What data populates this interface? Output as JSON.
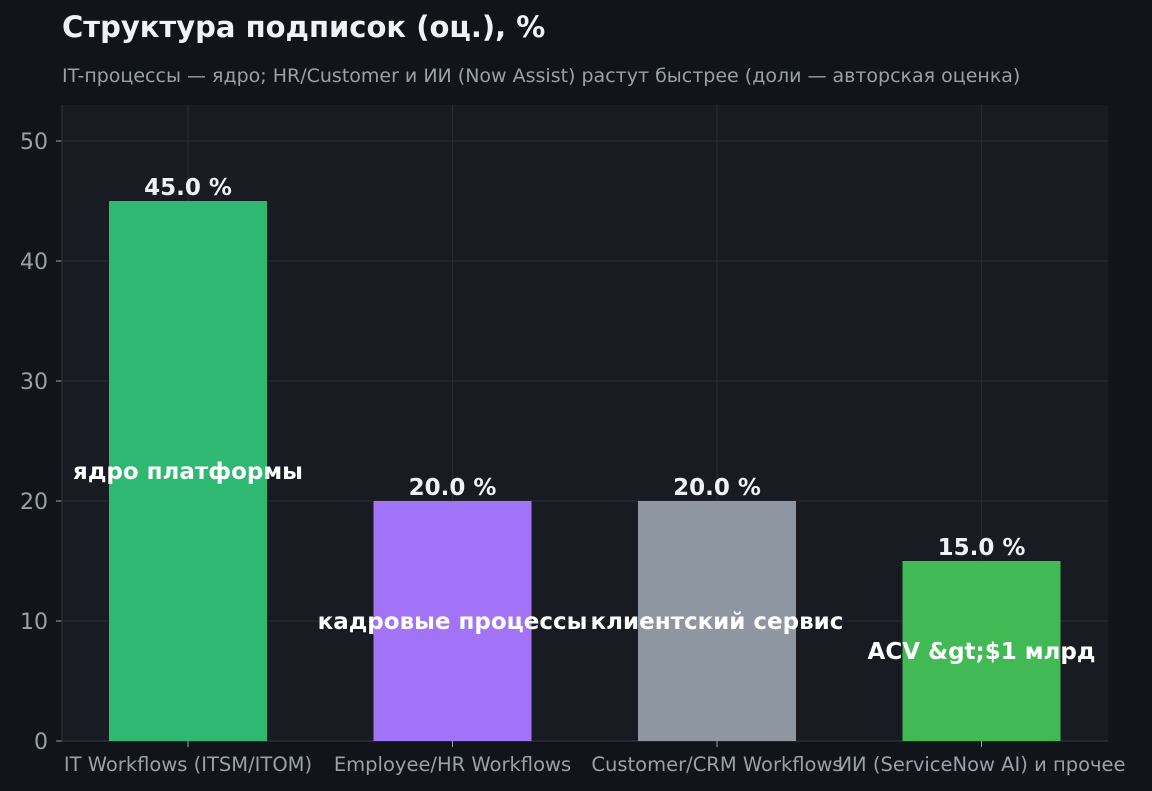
{
  "chart_data": {
    "type": "bar",
    "title": "Структура подписок (оц.), %",
    "subtitle": "IT-процессы — ядро; HR/Customer и ИИ (Now Assist) растут быстрее (доли — авторская оценка)",
    "xlabel": "",
    "ylabel": "",
    "ylim": [
      0,
      53
    ],
    "yticks": [
      0,
      10,
      20,
      30,
      40,
      50
    ],
    "grid": true,
    "categories": [
      "IT Workflows (ITSM/ITOM)",
      "Employee/HR Workflows",
      "Customer/CRM Workflows",
      "ИИ (ServiceNow AI) и прочее"
    ],
    "values": [
      45.0,
      20.0,
      20.0,
      15.0
    ],
    "value_labels": [
      "45.0 %",
      "20.0 %",
      "20.0 %",
      "15.0 %"
    ],
    "annotations": [
      {
        "text": "ядро платформы",
        "y": 22.5
      },
      {
        "text": "кадровые процессы",
        "y": 10
      },
      {
        "text": "клиентский сервис",
        "y": 10
      },
      {
        "text": "ACV &gt;$1 млрд",
        "y": 7.5
      }
    ],
    "colors": [
      "#2eb872",
      "#a272f7",
      "#8e96a2",
      "#41b954"
    ],
    "colors_meta": {
      "background": "#111418",
      "plot_background": "#181b22",
      "grid": "#252a33",
      "text": "#f0f2f5",
      "muted": "#9aa1ab"
    }
  }
}
